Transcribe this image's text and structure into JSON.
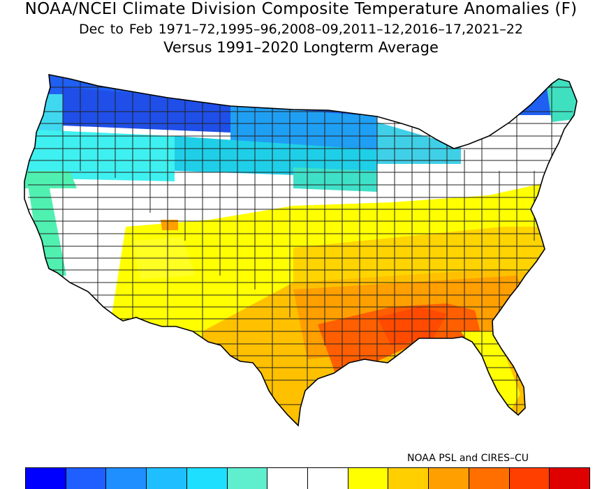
{
  "title": {
    "line1": "NOAA/NCEI Climate Division Composite Temperature Anomalies (F)",
    "line2": "Dec to Feb   1971–72,1995–96,2008–09,2011–12,2016–17,2021–22",
    "line3": "Versus 1991–2020 Longterm Average"
  },
  "credit": "NOAA PSL and CIRES–CU",
  "map": {
    "region": "Contiguous United States climate divisions",
    "pattern": "cold anomalies across the northern tier, warm anomalies across the south, strongest over the Gulf Coast states",
    "region_colors": {
      "pacific_northwest": "#3ff0f0",
      "northern_rockies": "#1f5ff2",
      "montana_dakotas_minnesota": "#1f9ff4",
      "northern_plains_south": "#1fcfe8",
      "upper_great_lakes": "#3fe0c8",
      "california_coast": "#50f0b0",
      "great_basin_central_plains_northeast": "#ffffff",
      "southwest_mid_atlantic": "#ffff00",
      "texas_southern_plains": "#ffc000",
      "southeast_tennessee_valley": "#ff9f00",
      "gulf_coast_deep_south": "#ff5f00",
      "maine_north": "#3fe0c0"
    }
  },
  "colorbar": {
    "colors": [
      "#0000ff",
      "#1f5fff",
      "#1f8fff",
      "#1fbfff",
      "#1fdfff",
      "#5fefcf",
      "#ffffff",
      "#ffffff",
      "#ffff00",
      "#ffcf00",
      "#ff9f00",
      "#ff6f00",
      "#ff3f00",
      "#df0000"
    ]
  }
}
